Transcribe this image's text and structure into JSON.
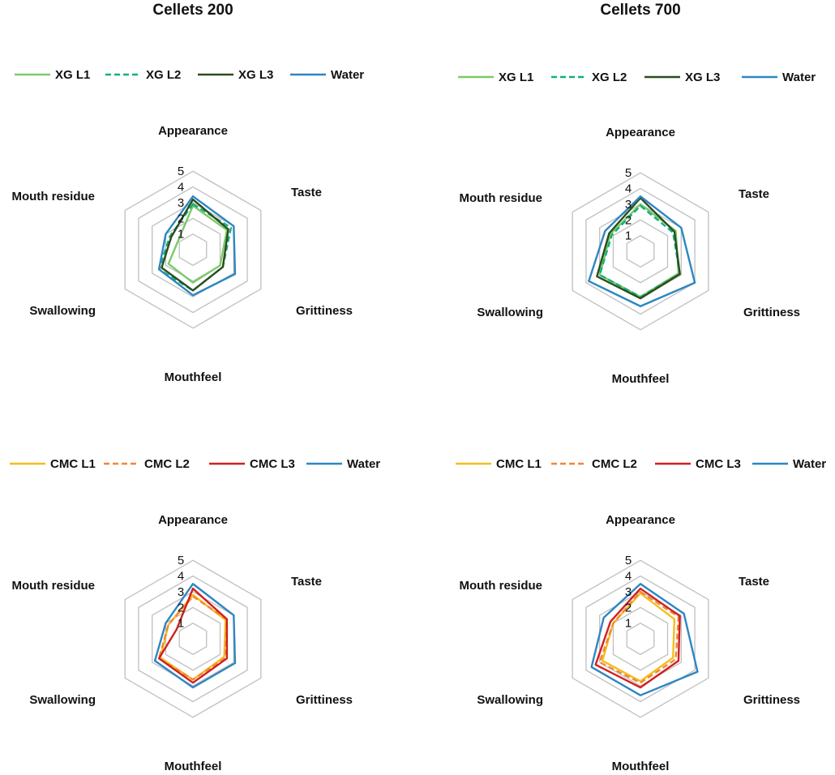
{
  "column_titles": [
    "Cellets 200",
    "Cellets 700"
  ],
  "colors": {
    "XG L1": "#7cc96a",
    "XG L2": "#10b07a",
    "XG L3": "#2a4d1e",
    "CMC L1": "#f5bd1f",
    "CMC L2": "#f08838",
    "CMC L3": "#d21f1f",
    "Water": "#2e86c1",
    "grid": "#bfbfbf"
  },
  "chart_data": [
    {
      "type": "radar",
      "title": "Cellets 200",
      "axes": [
        "Appearance",
        "Taste",
        "Grittiness",
        "Mouthfeel",
        "Swallowing",
        "Mouth residue"
      ],
      "r_ticks": [
        1,
        2,
        3,
        4,
        5
      ],
      "rlim": [
        0,
        5
      ],
      "grid": true,
      "legend_position": "top",
      "series": [
        {
          "name": "XG L1",
          "style": "solid",
          "values": [
            2.8,
            2.5,
            2.0,
            2.1,
            1.8,
            1.1
          ]
        },
        {
          "name": "XG L2",
          "style": "dashed",
          "values": [
            2.9,
            2.8,
            2.2,
            2.6,
            2.5,
            1.7
          ]
        },
        {
          "name": "XG L3",
          "style": "solid",
          "values": [
            3.2,
            2.6,
            2.2,
            2.6,
            2.3,
            1.6
          ]
        },
        {
          "name": "Water",
          "style": "solid",
          "values": [
            3.4,
            3.0,
            3.1,
            2.9,
            2.5,
            2.0
          ]
        }
      ]
    },
    {
      "type": "radar",
      "title": "Cellets 700",
      "axes": [
        "Appearance",
        "Taste",
        "Grittiness",
        "Mouthfeel",
        "Swallowing",
        "Mouth residue"
      ],
      "r_ticks": [
        1,
        2,
        3,
        4,
        5
      ],
      "rlim": [
        0,
        5
      ],
      "grid": true,
      "legend_position": "top",
      "series": [
        {
          "name": "XG L1",
          "style": "solid",
          "values": [
            3.0,
            2.6,
            2.8,
            2.9,
            3.0,
            2.2
          ]
        },
        {
          "name": "XG L2",
          "style": "dashed",
          "values": [
            2.9,
            2.4,
            2.9,
            2.9,
            3.0,
            2.1
          ]
        },
        {
          "name": "XG L3",
          "style": "solid",
          "values": [
            3.4,
            2.5,
            2.9,
            3.0,
            3.2,
            2.3
          ]
        },
        {
          "name": "Water",
          "style": "solid",
          "values": [
            3.5,
            3.0,
            4.0,
            3.5,
            3.8,
            2.6
          ]
        }
      ]
    },
    {
      "type": "radar",
      "title": "",
      "axes": [
        "Appearance",
        "Taste",
        "Grittiness",
        "Mouthfeel",
        "Swallowing",
        "Mouth residue"
      ],
      "r_ticks": [
        1,
        2,
        3,
        4,
        5
      ],
      "rlim": [
        0,
        5
      ],
      "grid": true,
      "legend_position": "top",
      "series": [
        {
          "name": "CMC L1",
          "style": "solid",
          "values": [
            2.8,
            2.4,
            2.3,
            2.6,
            2.4,
            1.8
          ]
        },
        {
          "name": "CMC L2",
          "style": "dashed",
          "values": [
            2.7,
            2.5,
            2.4,
            2.6,
            2.5,
            1.8
          ]
        },
        {
          "name": "CMC L3",
          "style": "solid",
          "values": [
            3.2,
            2.5,
            2.5,
            2.8,
            2.5,
            1.2
          ]
        },
        {
          "name": "Water",
          "style": "solid",
          "values": [
            3.5,
            3.0,
            3.1,
            3.1,
            2.8,
            2.0
          ]
        }
      ]
    },
    {
      "type": "radar",
      "title": "",
      "axes": [
        "Appearance",
        "Taste",
        "Grittiness",
        "Mouthfeel",
        "Swallowing",
        "Mouth residue"
      ],
      "r_ticks": [
        1,
        2,
        3,
        4,
        5
      ],
      "rlim": [
        0,
        5
      ],
      "grid": true,
      "legend_position": "top",
      "series": [
        {
          "name": "CMC L1",
          "style": "solid",
          "values": [
            2.9,
            2.5,
            2.4,
            2.7,
            2.8,
            2.0
          ]
        },
        {
          "name": "CMC L2",
          "style": "dashed",
          "values": [
            3.0,
            2.8,
            2.6,
            2.8,
            3.0,
            2.0
          ]
        },
        {
          "name": "CMC L3",
          "style": "solid",
          "values": [
            3.2,
            2.9,
            2.8,
            3.1,
            3.3,
            2.2
          ]
        },
        {
          "name": "Water",
          "style": "solid",
          "values": [
            3.5,
            3.2,
            4.2,
            3.6,
            3.6,
            2.7
          ]
        }
      ]
    }
  ]
}
